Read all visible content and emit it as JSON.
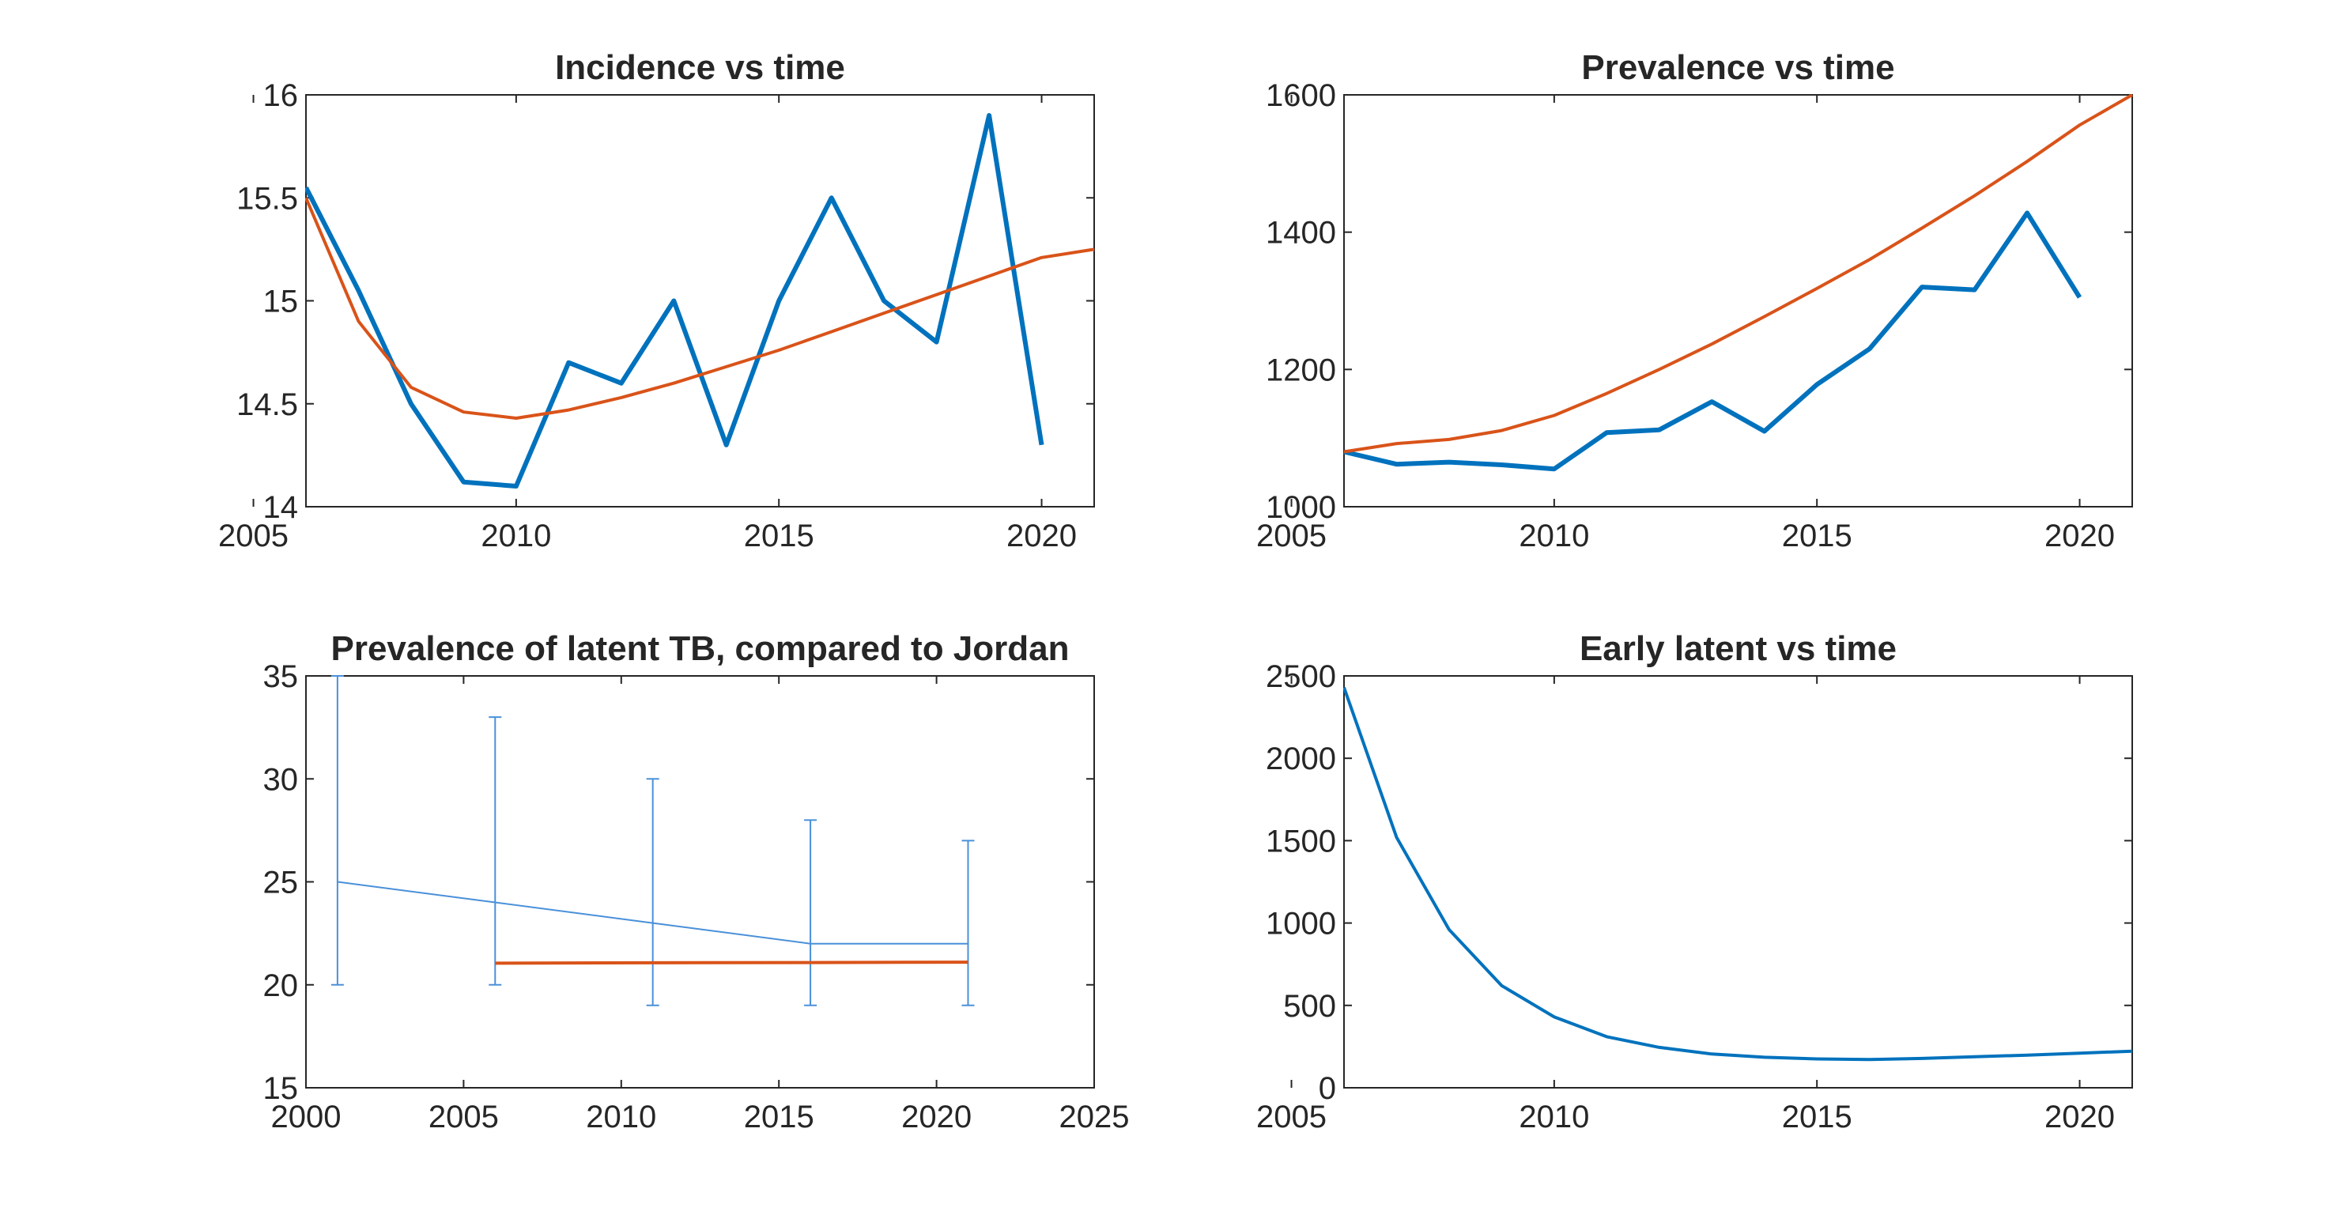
{
  "chart_data": [
    {
      "type": "line",
      "title": "Incidence vs time",
      "xlim": [
        2006,
        2021
      ],
      "ylim": [
        14,
        16
      ],
      "xticks": [
        2005,
        2010,
        2015,
        2020
      ],
      "yticks": [
        14,
        14.5,
        15,
        15.5,
        16
      ],
      "grid": false,
      "series": [
        {
          "color": "#0072BD",
          "x": [
            2006,
            2007,
            2008,
            2009,
            2010,
            2011,
            2012,
            2013,
            2014,
            2015,
            2016,
            2017,
            2018,
            2019,
            2020
          ],
          "y": [
            15.55,
            15.05,
            14.5,
            14.12,
            14.1,
            14.7,
            14.6,
            15.0,
            14.3,
            15.0,
            15.5,
            15.0,
            14.8,
            15.9,
            14.3
          ]
        },
        {
          "color": "#D95319",
          "x": [
            2006,
            2007,
            2008,
            2009,
            2010,
            2011,
            2012,
            2013,
            2014,
            2015,
            2016,
            2017,
            2018,
            2019,
            2020,
            2021
          ],
          "y": [
            15.5,
            14.9,
            14.58,
            14.46,
            14.43,
            14.47,
            14.53,
            14.6,
            14.68,
            14.76,
            14.85,
            14.94,
            15.03,
            15.12,
            15.21,
            15.25
          ]
        }
      ]
    },
    {
      "type": "line",
      "title": "Prevalence vs time",
      "xlim": [
        2006,
        2021
      ],
      "ylim": [
        1000,
        1600
      ],
      "xticks": [
        2005,
        2010,
        2015,
        2020
      ],
      "yticks": [
        1000,
        1200,
        1400,
        1600
      ],
      "grid": false,
      "series": [
        {
          "color": "#0072BD",
          "x": [
            2006,
            2007,
            2008,
            2009,
            2010,
            2011,
            2012,
            2013,
            2014,
            2015,
            2016,
            2017,
            2018,
            2019,
            2020
          ],
          "y": [
            1080,
            1062,
            1065,
            1061,
            1055,
            1108,
            1112,
            1153,
            1110,
            1178,
            1230,
            1320,
            1316,
            1428,
            1305
          ]
        },
        {
          "color": "#D95319",
          "x": [
            2006,
            2007,
            2008,
            2009,
            2010,
            2011,
            2012,
            2013,
            2014,
            2015,
            2016,
            2017,
            2018,
            2019,
            2020,
            2021
          ],
          "y": [
            1080,
            1092,
            1098,
            1111,
            1133,
            1165,
            1200,
            1237,
            1277,
            1318,
            1360,
            1406,
            1453,
            1503,
            1556,
            1600
          ]
        }
      ]
    },
    {
      "type": "line",
      "title": "Prevalence of latent TB, compared to Jordan",
      "xlim": [
        2000,
        2025
      ],
      "ylim": [
        15,
        35
      ],
      "xticks": [
        2000,
        2005,
        2010,
        2015,
        2020,
        2025
      ],
      "yticks": [
        15,
        20,
        25,
        30,
        35
      ],
      "grid": false,
      "series": [
        {
          "color": "#4A90D9",
          "errorbar": true,
          "x": [
            2001,
            2006,
            2011,
            2016,
            2021
          ],
          "y": [
            25,
            24,
            23,
            22,
            22
          ],
          "lower": [
            20,
            20,
            19,
            19,
            19
          ],
          "upper": [
            35,
            33,
            30,
            28,
            27
          ]
        },
        {
          "color": "#D95319",
          "x": [
            2006,
            2011,
            2016,
            2021
          ],
          "y": [
            21.05,
            21.07,
            21.08,
            21.1
          ]
        }
      ]
    },
    {
      "type": "line",
      "title": "Early latent vs time",
      "xlim": [
        2006,
        2021
      ],
      "ylim": [
        0,
        2500
      ],
      "xticks": [
        2005,
        2010,
        2015,
        2020
      ],
      "yticks": [
        0,
        500,
        1000,
        1500,
        2000,
        2500
      ],
      "grid": false,
      "series": [
        {
          "color": "#0072BD",
          "x": [
            2006,
            2007,
            2008,
            2009,
            2010,
            2011,
            2012,
            2013,
            2014,
            2015,
            2016,
            2017,
            2018,
            2019,
            2020,
            2021
          ],
          "y": [
            2430,
            1520,
            960,
            620,
            430,
            310,
            245,
            205,
            185,
            175,
            172,
            178,
            188,
            198,
            210,
            222
          ]
        }
      ]
    }
  ]
}
